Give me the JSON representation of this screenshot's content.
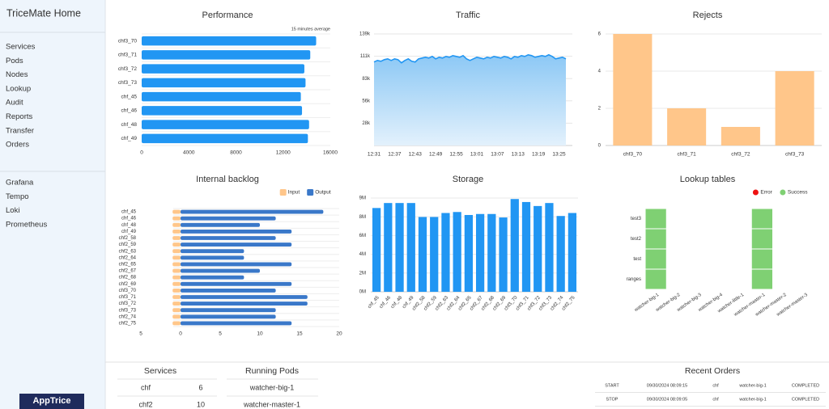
{
  "sidebar": {
    "title": "TriceMate Home",
    "menu": [
      "Services",
      "Pods",
      "Nodes",
      "Lookup",
      "Audit",
      "Reports",
      "Transfer",
      "Orders"
    ],
    "tools": [
      "Grafana",
      "Tempo",
      "Loki",
      "Prometheus"
    ],
    "logo": "AppTrice"
  },
  "chart_data": [
    {
      "type": "hbar",
      "title": "Performance",
      "subtitle": "15 minutes average",
      "categories": [
        "chf3_70",
        "chf3_71",
        "chf3_72",
        "chf3_73",
        "chf_45",
        "chf_46",
        "chf_48",
        "chf_49"
      ],
      "values": [
        14800,
        14300,
        13800,
        13900,
        13500,
        13600,
        14200,
        14100
      ],
      "color": "#2196f3",
      "xlim": [
        0,
        16000
      ],
      "xticks": [
        0,
        4000,
        8000,
        12000,
        16000
      ],
      "grid": false
    },
    {
      "type": "area",
      "title": "Traffic",
      "categories": [
        "12:31",
        null,
        null,
        null,
        null,
        null,
        "12:37",
        null,
        null,
        null,
        null,
        null,
        "12:43",
        null,
        null,
        null,
        null,
        null,
        "12:49",
        null,
        null,
        null,
        null,
        null,
        "12:55",
        null,
        null,
        null,
        null,
        null,
        "13:01",
        null,
        null,
        null,
        null,
        null,
        "13:07",
        null,
        null,
        null,
        null,
        null,
        "13:13",
        null,
        null,
        null,
        null,
        null,
        "13:19",
        null,
        null,
        null,
        null,
        null,
        "13:25",
        null,
        null
      ],
      "values": [
        104000,
        106000,
        105000,
        107000,
        108000,
        106000,
        108000,
        107000,
        103000,
        106000,
        108000,
        105000,
        104000,
        108000,
        109000,
        110000,
        109000,
        111000,
        108000,
        110000,
        109000,
        111000,
        110000,
        112000,
        111000,
        110000,
        112000,
        108000,
        106000,
        108000,
        110000,
        109000,
        108000,
        110000,
        109000,
        111000,
        110000,
        109000,
        111000,
        110000,
        108000,
        111000,
        110000,
        112000,
        111000,
        113000,
        112000,
        110000,
        111000,
        112000,
        111000,
        113000,
        111000,
        108000,
        109000,
        110000,
        108000
      ],
      "color": "#2196f3",
      "ylim": [
        0,
        139000
      ],
      "yticks": [
        {
          "value": 27800,
          "label": "28k"
        },
        {
          "value": 55600,
          "label": "56k"
        },
        {
          "value": 83400,
          "label": "83k"
        },
        {
          "value": 111200,
          "label": "111k"
        },
        {
          "value": 139000,
          "label": "139k"
        }
      ],
      "grid": true
    },
    {
      "type": "bar",
      "title": "Rejects",
      "categories": [
        "chf3_70",
        "chf3_71",
        "chf3_72",
        "chf3_73"
      ],
      "values": [
        6,
        2,
        1,
        4
      ],
      "color": "#ffc68a",
      "ylim": [
        0,
        6
      ],
      "yticks": [
        0,
        2,
        4,
        6
      ],
      "grid": true
    },
    {
      "type": "diverging",
      "title": "Internal backlog",
      "categories": [
        "chf_45",
        "chf_46",
        "chf_48",
        "chf_49",
        "chf2_58",
        "chf2_59",
        "chf2_63",
        "chf2_64",
        "chf2_65",
        "chf2_67",
        "chf2_68",
        "chf2_69",
        "chf3_70",
        "chf3_71",
        "chf3_72",
        "chf3_73",
        "chf2_74",
        "chf2_75"
      ],
      "series": [
        {
          "name": "Input",
          "color": "#ffc68a",
          "values": [
            -1,
            -1,
            -1,
            -1,
            -1,
            -1,
            -1,
            -1,
            -1,
            -1,
            -1,
            -1,
            -1,
            -1,
            -1,
            -1,
            -1,
            -1
          ]
        },
        {
          "name": "Output",
          "color": "#3a78c9",
          "values": [
            18,
            12,
            10,
            14,
            12,
            14,
            8,
            8,
            14,
            10,
            8,
            14,
            12,
            16,
            16,
            12,
            12,
            14
          ]
        }
      ],
      "xlim": [
        -5,
        20
      ],
      "xticks": [
        {
          "value": -5,
          "label": "5"
        },
        0,
        5,
        10,
        15,
        20
      ],
      "legend": "top-right"
    },
    {
      "type": "bar",
      "title": "Storage",
      "categories": [
        "chf_45",
        "chf_46",
        "chf_48",
        "chf_49",
        "chf2_58",
        "chf2_59",
        "chf2_63",
        "chf2_64",
        "chf2_65",
        "chf2_67",
        "chf2_68",
        "chf2_69",
        "chf3_70",
        "chf3_71",
        "chf3_72",
        "chf3_73",
        "chf2_74",
        "chf2_75"
      ],
      "values": [
        8400000,
        8900000,
        8900000,
        8900000,
        7500000,
        7500000,
        7900000,
        8000000,
        7700000,
        7800000,
        7800000,
        7450000,
        9300000,
        9000000,
        8600000,
        8900000,
        7600000,
        7900000
      ],
      "color": "#2196f3",
      "ylim": [
        0,
        9400000
      ],
      "yticks": [
        {
          "value": 0,
          "label": "0M"
        },
        {
          "value": 1880000,
          "label": "2M"
        },
        {
          "value": 3760000,
          "label": "4M"
        },
        {
          "value": 5640000,
          "label": "6M"
        },
        {
          "value": 7520000,
          "label": "8M"
        },
        {
          "value": 9400000,
          "label": "9M"
        }
      ],
      "grid": true
    },
    {
      "type": "heatmap",
      "title": "Lookup tables",
      "x": [
        "watcher-big-1",
        "watcher-big-2",
        "watcher-big-3",
        "watcher-big-4",
        "watcher-little-1",
        "watcher-master-1",
        "watcher-master-2",
        "watcher-master-3"
      ],
      "y": [
        "test3",
        "test2",
        "test",
        "ranges"
      ],
      "series": [
        {
          "name": "Error",
          "color": "#ee1111",
          "cells": []
        },
        {
          "name": "Success",
          "color": "#7fd073",
          "cells": [
            [
              0,
              0
            ],
            [
              0,
              1
            ],
            [
              0,
              2
            ],
            [
              0,
              3
            ],
            [
              5,
              0
            ],
            [
              5,
              1
            ],
            [
              5,
              2
            ],
            [
              5,
              3
            ]
          ]
        }
      ],
      "legend": "top-right"
    }
  ],
  "services": {
    "title": "Services",
    "rows": [
      [
        "chf",
        6
      ],
      [
        "chf2",
        10
      ]
    ]
  },
  "pods": {
    "title": "Running Pods",
    "rows": [
      "watcher-big-1",
      "watcher-master-1"
    ]
  },
  "orders": {
    "title": "Recent Orders",
    "rows": [
      [
        "START",
        "09/30/2024 08:09:15",
        "chf",
        "watcher-big-1",
        "COMPLETED"
      ],
      [
        "STOP",
        "09/30/2024 08:09:05",
        "chf",
        "watcher-big-1",
        "COMPLETED"
      ]
    ]
  }
}
